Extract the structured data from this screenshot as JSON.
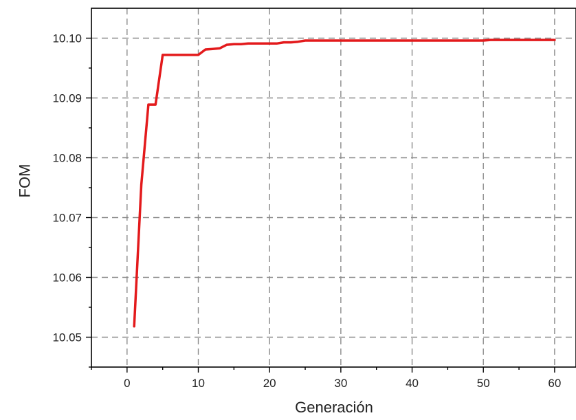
{
  "chart_data": {
    "type": "line",
    "title": "",
    "xlabel": "Generación",
    "ylabel": "FOM",
    "xlim": [
      -5,
      63
    ],
    "ylim": [
      10.045,
      10.105
    ],
    "xticks": [
      0,
      10,
      20,
      30,
      40,
      50,
      60
    ],
    "xtick_labels": [
      "0",
      "10",
      "20",
      "30",
      "40",
      "50",
      "60"
    ],
    "yticks": [
      10.05,
      10.06,
      10.07,
      10.08,
      10.09,
      10.1
    ],
    "ytick_labels": [
      "10.05",
      "10.06",
      "10.07",
      "10.08",
      "10.09",
      "10.10"
    ],
    "grid": true,
    "series": [
      {
        "color": "#e31a1c",
        "x": [
          1,
          2,
          3,
          4,
          5,
          6,
          7,
          8,
          9,
          10,
          11,
          12,
          13,
          14,
          15,
          16,
          17,
          18,
          19,
          20,
          21,
          22,
          23,
          24,
          25,
          26,
          27,
          28,
          29,
          30,
          31,
          32,
          33,
          34,
          35,
          36,
          37,
          38,
          39,
          40,
          41,
          42,
          43,
          44,
          45,
          46,
          47,
          48,
          49,
          50,
          51,
          52,
          53,
          54,
          55,
          56,
          57,
          58,
          59,
          60
        ],
        "y": [
          10.0518,
          10.0755,
          10.0889,
          10.0889,
          10.0972,
          10.0972,
          10.0972,
          10.0972,
          10.0972,
          10.0972,
          10.0981,
          10.0982,
          10.0983,
          10.0989,
          10.099,
          10.099,
          10.0991,
          10.0991,
          10.0991,
          10.0991,
          10.0991,
          10.0993,
          10.0993,
          10.0994,
          10.0996,
          10.0996,
          10.0996,
          10.0996,
          10.0996,
          10.0996,
          10.0996,
          10.0996,
          10.0996,
          10.0996,
          10.0996,
          10.0996,
          10.0996,
          10.0996,
          10.0996,
          10.0996,
          10.0996,
          10.0996,
          10.0996,
          10.0996,
          10.0996,
          10.0996,
          10.0996,
          10.0996,
          10.0996,
          10.0996,
          10.0997,
          10.0997,
          10.0997,
          10.0997,
          10.0997,
          10.0997,
          10.0997,
          10.0997,
          10.0997,
          10.0997
        ]
      }
    ]
  }
}
